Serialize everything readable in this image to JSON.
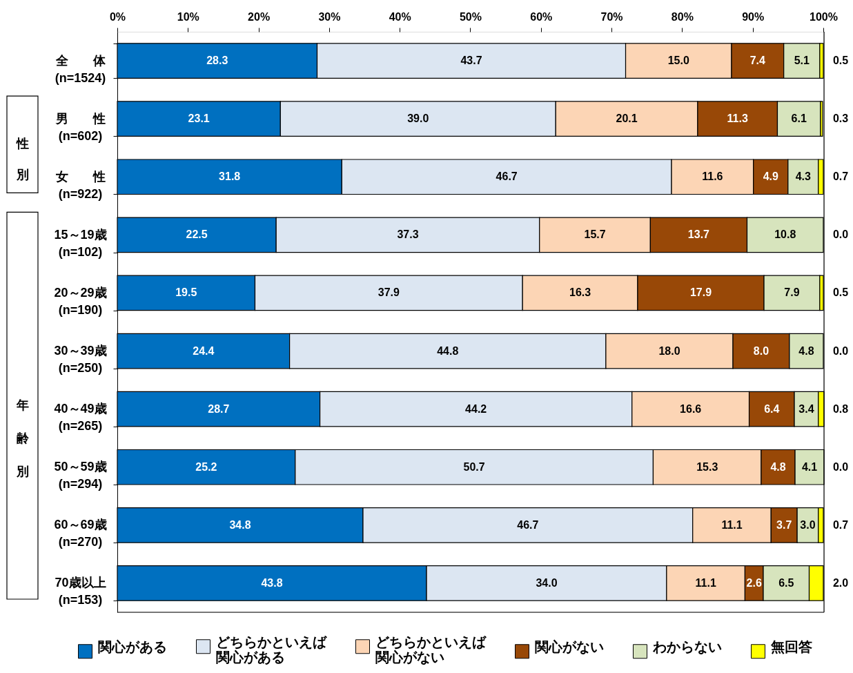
{
  "chart_data": {
    "type": "bar",
    "orientation": "horizontal",
    "stacked": true,
    "legend": "bottom",
    "categories": [
      "全　　体\n(n=1524)",
      "男　　性\n(n=602)",
      "女　　性\n(n=922)",
      "15～19歳\n(n=102)",
      "20～29歳\n(n=190)",
      "30～39歳\n(n=250)",
      "40～49歳\n(n=265)",
      "50～59歳\n(n=294)",
      "60～69歳\n(n=270)",
      "70歳以上\n(n=153)"
    ],
    "series": [
      {
        "name": "関心がある",
        "color": "#0070c0",
        "values": [
          28.3,
          23.1,
          31.8,
          22.5,
          19.5,
          24.4,
          28.7,
          25.2,
          34.8,
          43.8
        ],
        "value_labels": [
          "28.3",
          "23.1",
          "31.8",
          "22.5",
          "19.5",
          "24.4",
          "28.7",
          "25.2",
          "34.8",
          "43.8"
        ]
      },
      {
        "name": "どちらかといえば関心がある",
        "color": "#dce6f2",
        "values": [
          43.7,
          39.0,
          46.7,
          37.3,
          37.9,
          44.8,
          44.2,
          50.7,
          46.7,
          34.0
        ],
        "value_labels": [
          "43.7",
          "39.0",
          "46.7",
          "37.3",
          "37.9",
          "44.8",
          "44.2",
          "50.7",
          "46.7",
          "34.0"
        ]
      },
      {
        "name": "どちらかといえば関心がない",
        "color": "#fcd5b5",
        "values": [
          15.0,
          20.1,
          11.6,
          15.7,
          16.3,
          18.0,
          16.6,
          15.3,
          11.1,
          11.1
        ],
        "value_labels": [
          "15.0",
          "20.1",
          "11.6",
          "15.7",
          "16.3",
          "18.0",
          "16.6",
          "15.3",
          "11.1",
          "11.1"
        ]
      },
      {
        "name": "関心がない",
        "color": "#984807",
        "values": [
          7.4,
          11.3,
          4.9,
          13.7,
          17.9,
          8.0,
          6.4,
          4.8,
          3.7,
          2.6
        ],
        "value_labels": [
          "7.4",
          "11.3",
          "4.9",
          "13.7",
          "17.9",
          "8.0",
          "6.4",
          "4.8",
          "3.7",
          "2.6"
        ]
      },
      {
        "name": "わからない",
        "color": "#d7e4bd",
        "values": [
          5.1,
          6.1,
          4.3,
          10.8,
          7.9,
          4.8,
          3.4,
          4.1,
          3.0,
          6.5
        ],
        "value_labels": [
          "5.1",
          "6.1",
          "4.3",
          "10.8",
          "7.9",
          "4.8",
          "3.4",
          "4.1",
          "3.0",
          "6.5"
        ]
      },
      {
        "name": "無回答",
        "color": "#ffff00",
        "values": [
          0.5,
          0.3,
          0.7,
          0.0,
          0.5,
          0.0,
          0.8,
          0.0,
          0.7,
          2.0
        ],
        "value_labels": [
          "0.5",
          "0.3",
          "0.7",
          "0.0",
          "0.5",
          "0.0",
          "0.8",
          "0.0",
          "0.7",
          "2.0"
        ]
      }
    ],
    "xlim": [
      0,
      100.1
    ],
    "xticks": [
      {
        "value": 0,
        "label": "0%"
      },
      {
        "value": 10,
        "label": "10%"
      },
      {
        "value": 20,
        "label": "20%"
      },
      {
        "value": 30,
        "label": "30%"
      },
      {
        "value": 40,
        "label": "40%"
      },
      {
        "value": 50,
        "label": "50%"
      },
      {
        "value": 60,
        "label": "60%"
      },
      {
        "value": 70,
        "label": "70%"
      },
      {
        "value": 80,
        "label": "80%"
      },
      {
        "value": 90,
        "label": "90%"
      },
      {
        "value": 100,
        "label": "100%"
      }
    ],
    "annotations": [
      "性別",
      "年齢別"
    ]
  }
}
